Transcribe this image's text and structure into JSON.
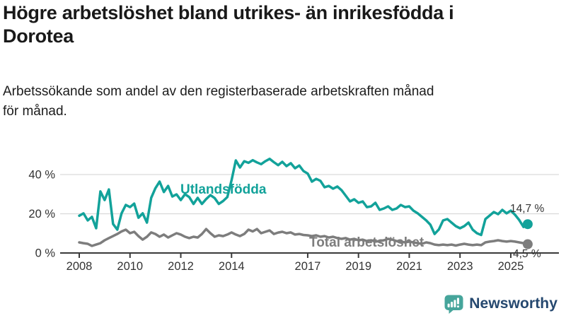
{
  "header": {
    "title": "Högre arbetslöshet bland utrikes- än inrikesfödda i\nDorotea",
    "subtitle": "Arbetssökande som andel av den registerbaserade arbetskraften månad\nför månad."
  },
  "footer": {
    "brand": "Newsworthy"
  },
  "colors": {
    "accent_teal": "#12a29a",
    "series_gray": "#7d7d7d",
    "grid_gray": "#d9d9d9",
    "axis_dark": "#3a3a3a",
    "tick_text": "#333333",
    "annotation_text": "#333333",
    "logo_teal": "#46a59b",
    "logo_navy": "#25486f"
  },
  "chart_data": {
    "type": "line",
    "title": "Högre arbetslöshet bland utrikes- än inrikesfödda i Dorotea",
    "subtitle": "Arbetssökande som andel av den registerbaserade arbetskraften månad för månad.",
    "xlabel": "",
    "ylabel": "",
    "x_start": 2008,
    "points_per_year": 6,
    "x_ticks": [
      2008,
      2010,
      2012,
      2014,
      2017,
      2019,
      2021,
      2023,
      2025
    ],
    "y_ticks": [
      {
        "value": 0,
        "label": "0 %"
      },
      {
        "value": 20,
        "label": "20 %"
      },
      {
        "value": 40,
        "label": "40 %"
      }
    ],
    "ylim": [
      0,
      52
    ],
    "grid": "horizontal",
    "legend_position": "inline-labels",
    "series": [
      {
        "name": "Utlandsfödda",
        "color": "#12a29a",
        "end_label": "14,7 %",
        "end_value": 14.7,
        "values": [
          19.0,
          20.2,
          16.6,
          18.4,
          12.6,
          31.4,
          27.0,
          32.4,
          14.8,
          11.9,
          20.2,
          24.5,
          23.4,
          25.2,
          18.0,
          20.2,
          15.5,
          28.1,
          33.0,
          36.4,
          31.1,
          34.2,
          28.8,
          29.9,
          27.0,
          30.0,
          28.5,
          25.0,
          28.1,
          25.0,
          27.5,
          29.5,
          28.0,
          25.0,
          26.5,
          28.5,
          37.1,
          47.2,
          43.6,
          46.8,
          46.0,
          47.3,
          46.2,
          45.3,
          46.8,
          48.0,
          46.3,
          44.8,
          46.5,
          44.3,
          45.8,
          43.2,
          44.6,
          41.8,
          40.5,
          36.4,
          37.8,
          36.8,
          33.5,
          34.2,
          32.8,
          33.9,
          32.0,
          29.2,
          26.3,
          27.4,
          25.6,
          26.3,
          23.4,
          23.8,
          25.6,
          22.0,
          22.7,
          23.8,
          22.0,
          22.7,
          24.5,
          23.4,
          23.8,
          21.6,
          20.2,
          18.4,
          16.6,
          14.4,
          9.7,
          12.0,
          16.6,
          17.3,
          15.5,
          13.7,
          12.6,
          13.7,
          15.5,
          11.9,
          10.1,
          9.2,
          17.3,
          19.1,
          20.9,
          19.8,
          22.0,
          20.2,
          21.6,
          19.5,
          16.8,
          13.3,
          14.7
        ]
      },
      {
        "name": "Total arbetslöshet",
        "color": "#7d7d7d",
        "end_label": "4,5 %",
        "end_value": 4.5,
        "values": [
          5.4,
          5.0,
          4.7,
          3.6,
          4.3,
          5.0,
          6.5,
          7.6,
          8.6,
          9.7,
          11.0,
          11.9,
          10.1,
          10.8,
          8.6,
          6.8,
          8.3,
          10.5,
          9.7,
          8.3,
          9.4,
          7.9,
          9.0,
          10.1,
          9.4,
          8.3,
          7.6,
          8.3,
          7.9,
          9.7,
          12.2,
          10.1,
          8.3,
          9.0,
          8.6,
          9.4,
          10.5,
          9.4,
          8.6,
          9.7,
          11.9,
          11.0,
          12.2,
          10.1,
          10.8,
          11.5,
          9.7,
          10.4,
          10.8,
          10.1,
          10.5,
          9.4,
          9.7,
          9.2,
          9.0,
          8.6,
          9.0,
          8.3,
          8.6,
          7.9,
          8.3,
          7.6,
          7.2,
          7.6,
          6.8,
          7.2,
          6.5,
          6.8,
          6.1,
          6.5,
          5.8,
          6.1,
          6.5,
          7.2,
          6.8,
          6.1,
          5.8,
          5.4,
          5.8,
          5.4,
          5.0,
          4.7,
          5.4,
          5.0,
          4.3,
          4.0,
          4.3,
          4.0,
          4.3,
          3.8,
          4.3,
          4.7,
          4.3,
          4.0,
          4.3,
          4.0,
          5.4,
          5.8,
          6.1,
          6.5,
          6.1,
          5.8,
          6.1,
          5.8,
          5.4,
          5.0,
          4.5
        ]
      }
    ]
  }
}
